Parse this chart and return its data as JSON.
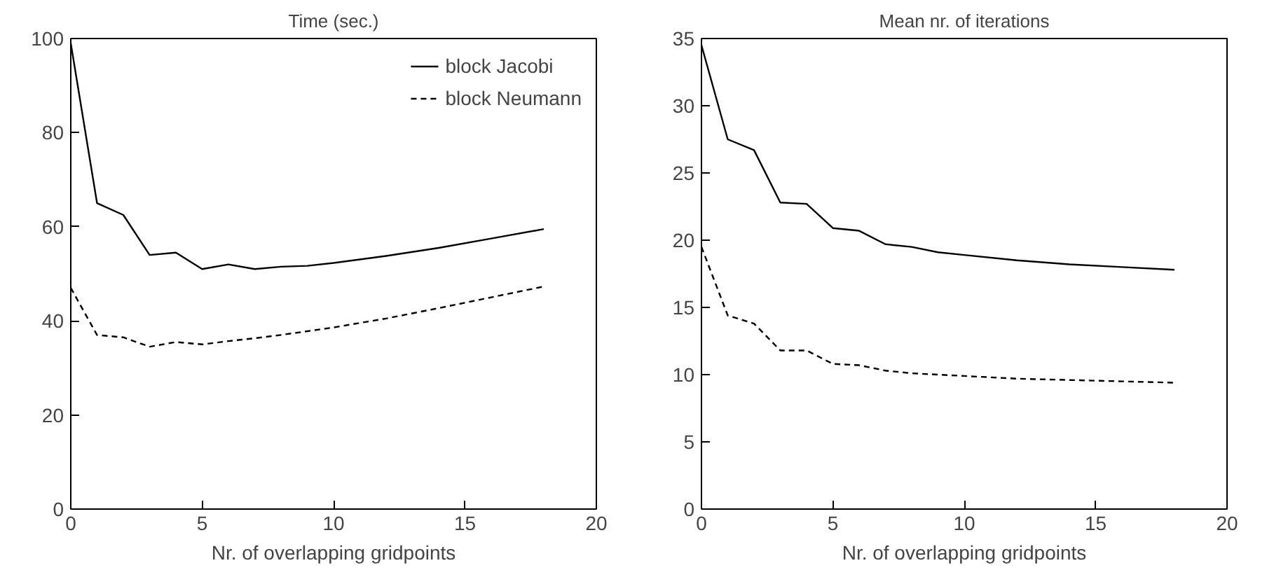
{
  "chart_data": [
    {
      "type": "line",
      "title": "Time (sec.)",
      "xlabel": "Nr. of overlapping gridpoints",
      "x": [
        0,
        1,
        2,
        3,
        4,
        5,
        6,
        7,
        8,
        9,
        10,
        12,
        14,
        16,
        18
      ],
      "xlim": [
        0,
        20
      ],
      "xticks": [
        0,
        5,
        10,
        15,
        20
      ],
      "ylim": [
        0,
        100
      ],
      "yticks": [
        0,
        20,
        40,
        60,
        80,
        100
      ],
      "grid": false,
      "legend": "top right",
      "series": [
        {
          "name": "block Jacobi",
          "color": "#000000",
          "line_style": "solid",
          "values": [
            99,
            65,
            62.5,
            54,
            54.5,
            51,
            52,
            51,
            51.5,
            51.7,
            52.3,
            53.8,
            55.5,
            57.5,
            59.5
          ]
        },
        {
          "name": "block Neumann",
          "color": "#000000",
          "line_style": "dashed",
          "values": [
            47,
            37,
            36.5,
            34.5,
            35.5,
            35,
            35.7,
            36.3,
            37,
            37.8,
            38.6,
            40.5,
            42.7,
            45,
            47.3
          ]
        }
      ]
    },
    {
      "type": "line",
      "title": "Mean nr. of iterations",
      "xlabel": "Nr. of overlapping gridpoints",
      "x": [
        0,
        1,
        2,
        3,
        4,
        5,
        6,
        7,
        8,
        9,
        10,
        12,
        14,
        16,
        18
      ],
      "xlim": [
        0,
        20
      ],
      "xticks": [
        0,
        5,
        10,
        15,
        20
      ],
      "ylim": [
        0,
        35
      ],
      "yticks": [
        0,
        5,
        10,
        15,
        20,
        25,
        30,
        35
      ],
      "grid": false,
      "legend": false,
      "series": [
        {
          "color": "#000000",
          "line_style": "solid",
          "values": [
            34.5,
            27.5,
            26.7,
            22.8,
            22.7,
            20.9,
            20.7,
            19.7,
            19.5,
            19.1,
            18.9,
            18.5,
            18.2,
            18.0,
            17.8
          ]
        },
        {
          "color": "#000000",
          "line_style": "dashed",
          "values": [
            19.5,
            14.4,
            13.8,
            11.8,
            11.8,
            10.8,
            10.7,
            10.3,
            10.1,
            10.0,
            9.9,
            9.7,
            9.6,
            9.5,
            9.4
          ]
        }
      ]
    }
  ]
}
